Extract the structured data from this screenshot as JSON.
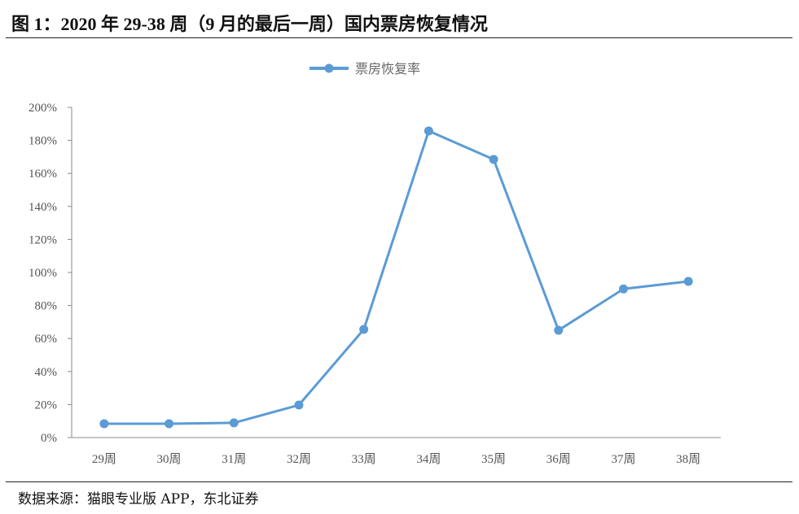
{
  "title": "图 1：2020 年 29-38 周（9 月的最后一周）国内票房恢复情况",
  "source": "数据来源：猫眼专业版 APP，东北证券",
  "chart_data": {
    "type": "line",
    "title": "",
    "xlabel": "",
    "ylabel": "",
    "categories": [
      "29周",
      "30周",
      "31周",
      "32周",
      "33周",
      "34周",
      "35周",
      "36周",
      "37周",
      "38周"
    ],
    "series": [
      {
        "name": "票房恢复率",
        "color": "#5b9bd5",
        "values": [
          8.4,
          8.4,
          8.9,
          19.7,
          65.5,
          185.7,
          168.5,
          65.0,
          90.0,
          94.6
        ]
      }
    ],
    "ylim": [
      0,
      200
    ],
    "yticks": [
      "0%",
      "20%",
      "40%",
      "60%",
      "80%",
      "100%",
      "120%",
      "140%",
      "160%",
      "180%",
      "200%"
    ],
    "grid": false,
    "legend": "top-center",
    "marker": "circle"
  }
}
